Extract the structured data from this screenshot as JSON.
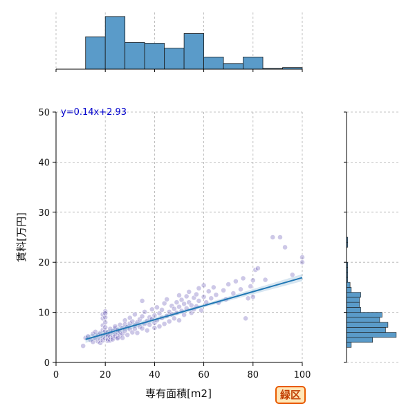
{
  "badge": {
    "text": "緑区"
  },
  "chart_data": {
    "type": "scatter",
    "title": "",
    "xlabel": "専有面積[m2]",
    "ylabel": "賃料[万円]",
    "xlim": [
      0,
      100
    ],
    "ylim": [
      0,
      50
    ],
    "xticks": [
      0,
      20,
      40,
      60,
      80,
      100
    ],
    "yticks": [
      0,
      10,
      20,
      30,
      40,
      50
    ],
    "grid": true,
    "point_color": "#4a3aa8",
    "bar_color": "#5a9bc9",
    "line_color": "#1f77b4",
    "equation_color": "#0000cc",
    "regression": {
      "label": "y=0.14x+2.93",
      "slope": 0.14,
      "intercept": 2.93,
      "x_range": [
        12,
        100
      ]
    },
    "top_histogram": {
      "bin_edges": [
        0,
        12,
        20,
        28,
        36,
        44,
        52,
        60,
        68,
        76,
        84,
        92,
        100
      ],
      "counts": [
        0,
        40,
        65,
        33,
        32,
        26,
        44,
        15,
        7,
        15,
        1,
        2
      ]
    },
    "right_histogram": {
      "bin_edges": [
        3,
        4,
        5,
        6,
        7,
        8,
        9,
        10,
        11,
        12,
        13,
        14,
        15,
        16,
        17,
        18,
        19,
        20,
        21,
        22,
        23,
        24,
        25
      ],
      "counts": [
        4,
        22,
        42,
        33,
        35,
        28,
        30,
        12,
        11,
        11,
        12,
        4,
        3,
        1,
        1,
        1,
        1,
        0,
        0,
        0,
        1,
        1
      ]
    },
    "points": [
      [
        11,
        3.3
      ],
      [
        12,
        4.9
      ],
      [
        13,
        5.2
      ],
      [
        14,
        4.5
      ],
      [
        15,
        5.7
      ],
      [
        15,
        4.1
      ],
      [
        16,
        6.1
      ],
      [
        16,
        4.8
      ],
      [
        17,
        5.4
      ],
      [
        17,
        4.2
      ],
      [
        18,
        5.9
      ],
      [
        18,
        4.6
      ],
      [
        18,
        3.9
      ],
      [
        19,
        6.5
      ],
      [
        19,
        5.1
      ],
      [
        19,
        4.4
      ],
      [
        19,
        7.4
      ],
      [
        19,
        8.8
      ],
      [
        19,
        9.6
      ],
      [
        20,
        5.6
      ],
      [
        20,
        4.8
      ],
      [
        20,
        6.3
      ],
      [
        20,
        7.0
      ],
      [
        20,
        8.0
      ],
      [
        20,
        9.0
      ],
      [
        20,
        10.2
      ],
      [
        20,
        9.8
      ],
      [
        21,
        5.2
      ],
      [
        21,
        4.3
      ],
      [
        21,
        6.0
      ],
      [
        21,
        5.5
      ],
      [
        21,
        4.6
      ],
      [
        22,
        5.8
      ],
      [
        22,
        6.7
      ],
      [
        22,
        4.4
      ],
      [
        22,
        5.1
      ],
      [
        23,
        6.2
      ],
      [
        23,
        5.0
      ],
      [
        23,
        4.6
      ],
      [
        24,
        6.8
      ],
      [
        24,
        5.6
      ],
      [
        24,
        5.2
      ],
      [
        24,
        7.2
      ],
      [
        25,
        5.9
      ],
      [
        25,
        6.5
      ],
      [
        25,
        5.0
      ],
      [
        25,
        4.8
      ],
      [
        26,
        6.1
      ],
      [
        26,
        7.5
      ],
      [
        26,
        5.4
      ],
      [
        27,
        6.9
      ],
      [
        27,
        5.7
      ],
      [
        27,
        4.9
      ],
      [
        28,
        6.3
      ],
      [
        28,
        8.4
      ],
      [
        28,
        7.6
      ],
      [
        29,
        7.1
      ],
      [
        29,
        5.5
      ],
      [
        30,
        7.8
      ],
      [
        30,
        6.6
      ],
      [
        30,
        8.9
      ],
      [
        31,
        6.0
      ],
      [
        31,
        8.2
      ],
      [
        32,
        7.4
      ],
      [
        32,
        6.7
      ],
      [
        32,
        9.6
      ],
      [
        33,
        8.0
      ],
      [
        33,
        5.9
      ],
      [
        34,
        8.6
      ],
      [
        34,
        7.1
      ],
      [
        35,
        9.2
      ],
      [
        35,
        6.8
      ],
      [
        35,
        12.3
      ],
      [
        36,
        7.7
      ],
      [
        36,
        10.1
      ],
      [
        37,
        8.3
      ],
      [
        37,
        6.4
      ],
      [
        38,
        9.0
      ],
      [
        38,
        7.5
      ],
      [
        39,
        10.6
      ],
      [
        39,
        8.7
      ],
      [
        40,
        9.4
      ],
      [
        40,
        7.9
      ],
      [
        40,
        6.9
      ],
      [
        41,
        11.0
      ],
      [
        41,
        8.4
      ],
      [
        42,
        9.8
      ],
      [
        42,
        7.2
      ],
      [
        43,
        10.5
      ],
      [
        43,
        8.9
      ],
      [
        44,
        7.7
      ],
      [
        44,
        11.8
      ],
      [
        45,
        9.3
      ],
      [
        45,
        12.6
      ],
      [
        46,
        10.1
      ],
      [
        46,
        8.2
      ],
      [
        47,
        11.3
      ],
      [
        47,
        9.6
      ],
      [
        48,
        10.7
      ],
      [
        48,
        8.8
      ],
      [
        49,
        12.0
      ],
      [
        49,
        9.9
      ],
      [
        50,
        11.1
      ],
      [
        50,
        13.4
      ],
      [
        50,
        8.4
      ],
      [
        51,
        12.5
      ],
      [
        51,
        10.3
      ],
      [
        52,
        11.7
      ],
      [
        52,
        9.5
      ],
      [
        53,
        13.2
      ],
      [
        53,
        10.8
      ],
      [
        54,
        12.0
      ],
      [
        54,
        14.1
      ],
      [
        55,
        11.4
      ],
      [
        55,
        9.9
      ],
      [
        56,
        12.9
      ],
      [
        56,
        10.6
      ],
      [
        57,
        13.6
      ],
      [
        57,
        11.2
      ],
      [
        58,
        14.8
      ],
      [
        58,
        12.3
      ],
      [
        59,
        10.4
      ],
      [
        60,
        13.1
      ],
      [
        60,
        15.4
      ],
      [
        61,
        12.0
      ],
      [
        62,
        14.2
      ],
      [
        63,
        12.8
      ],
      [
        64,
        15.0
      ],
      [
        65,
        13.5
      ],
      [
        66,
        11.9
      ],
      [
        68,
        14.4
      ],
      [
        69,
        12.6
      ],
      [
        70,
        15.6
      ],
      [
        72,
        13.8
      ],
      [
        73,
        16.2
      ],
      [
        75,
        14.6
      ],
      [
        76,
        16.8
      ],
      [
        77,
        8.8
      ],
      [
        78,
        12.8
      ],
      [
        79,
        15.2
      ],
      [
        80,
        16.4
      ],
      [
        80,
        13.1
      ],
      [
        81,
        18.5
      ],
      [
        82,
        18.8
      ],
      [
        85,
        16.5
      ],
      [
        88,
        25.0
      ],
      [
        91,
        25.0
      ],
      [
        93,
        23.0
      ],
      [
        96,
        17.5
      ],
      [
        100,
        20.0
      ],
      [
        100,
        21.0
      ]
    ]
  }
}
